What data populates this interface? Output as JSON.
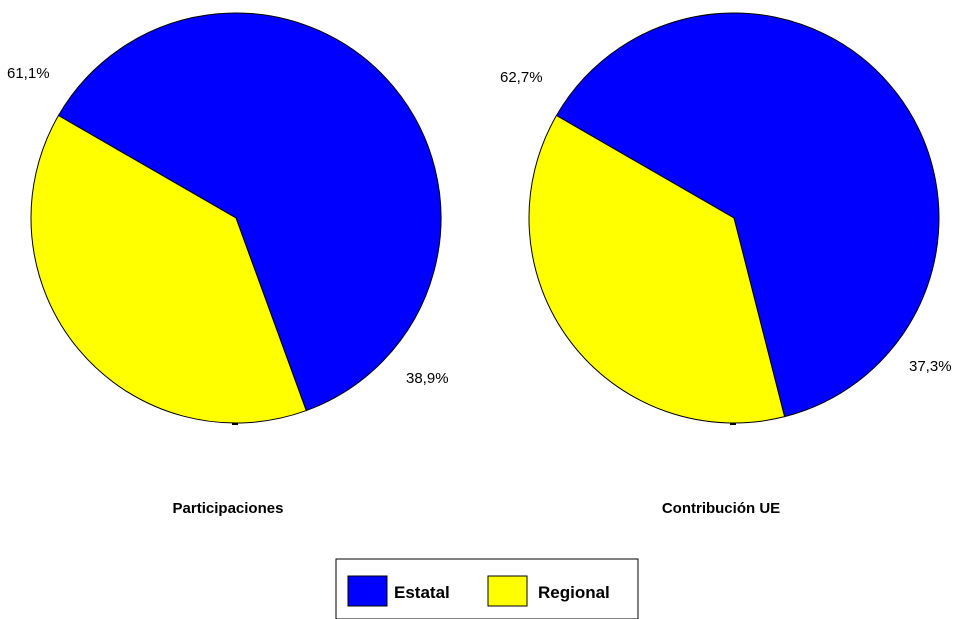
{
  "colors": {
    "estatal": "#0000ff",
    "regional": "#ffff00"
  },
  "legend": {
    "placement": "bottom-center",
    "items": [
      {
        "label": "Estatal",
        "color": "#0000ff"
      },
      {
        "label": "Regional",
        "color": "#ffff00"
      }
    ]
  },
  "chart_data": [
    {
      "type": "pie",
      "title": "Participaciones",
      "slices": [
        {
          "category": "Estatal",
          "value": 61.1,
          "label": "61,1%",
          "color": "#0000ff"
        },
        {
          "category": "Regional",
          "value": 38.9,
          "label": "38,9%",
          "color": "#ffff00"
        }
      ]
    },
    {
      "type": "pie",
      "title": "Contribución UE",
      "slices": [
        {
          "category": "Estatal",
          "value": 62.7,
          "label": "62,7%",
          "color": "#0000ff"
        },
        {
          "category": "Regional",
          "value": 37.3,
          "label": "37,3%",
          "color": "#ffff00"
        }
      ]
    }
  ]
}
